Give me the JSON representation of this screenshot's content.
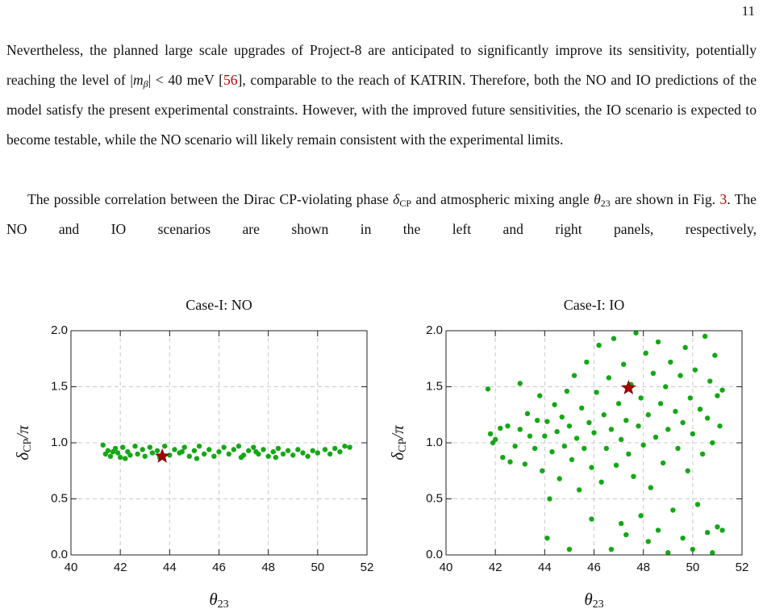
{
  "page_number": "11",
  "paragraphs": [
    [
      "Nevertheless, the planned large scale upgrades of Project-8 are anticipated to significantly improve its sensitivity, potentially reaching the level of |",
      "m",
      "β",
      "| < 40 meV [",
      "56",
      "], comparable to the reach of KATRIN. Therefore, both the NO and IO predictions of the model satisfy the present experimental constraints. However, with the improved future sensitivities, the IO scenario is expected to become testable, while the NO scenario will likely remain consistent with the experimental limits."
    ],
    [
      "The possible correlation between the Dirac CP-violating phase ",
      "δ",
      "CP",
      " and atmospheric mixing angle ",
      "θ",
      "23",
      " are shown in Fig. ",
      "3",
      ". The NO and IO scenarios are shown in the left and right panels, respectively,"
    ]
  ],
  "chart_data": [
    {
      "type": "scatter",
      "title": "Case-I: NO",
      "xlabel": [
        "θ",
        "23"
      ],
      "ylabel": [
        "δ",
        "CP",
        "/π"
      ],
      "xlim": [
        40,
        52
      ],
      "ylim": [
        0,
        2
      ],
      "xticks": [
        40,
        42,
        44,
        46,
        48,
        50,
        52
      ],
      "yticks": [
        {
          "value": 0,
          "label": "0.0"
        },
        0.5,
        {
          "value": 1,
          "label": "1.0"
        },
        1.5,
        {
          "value": 2,
          "label": "2.0"
        }
      ],
      "grid": true,
      "series": [
        {
          "color": "#14a814",
          "marker": "circle",
          "x": [
            41.3,
            41.4,
            41.5,
            41.6,
            41.8,
            41.9,
            42.0,
            42.1,
            42.3,
            42.4,
            42.6,
            42.7,
            42.9,
            43.0,
            43.2,
            43.3,
            43.5,
            43.8,
            44.0,
            44.2,
            44.4,
            44.6,
            44.8,
            45.0,
            45.2,
            45.4,
            45.6,
            45.8,
            46.0,
            46.2,
            46.4,
            46.6,
            46.8,
            47.0,
            47.2,
            47.4,
            47.6,
            47.8,
            48.0,
            48.2,
            48.4,
            48.6,
            48.8,
            49.0,
            49.2,
            49.4,
            49.6,
            49.8,
            50.0,
            50.3,
            50.5,
            50.7,
            50.9,
            51.1,
            51.3,
            42.2,
            43.6,
            45.1,
            46.9,
            48.3,
            41.7,
            44.5,
            47.5
          ],
          "y": [
            0.98,
            0.9,
            0.93,
            0.88,
            0.95,
            0.91,
            0.87,
            0.96,
            0.92,
            0.89,
            0.97,
            0.9,
            0.94,
            0.88,
            0.96,
            0.91,
            0.93,
            0.97,
            0.89,
            0.94,
            0.91,
            0.96,
            0.88,
            0.93,
            0.97,
            0.9,
            0.94,
            0.88,
            0.92,
            0.96,
            0.9,
            0.94,
            0.97,
            0.89,
            0.93,
            0.96,
            0.9,
            0.94,
            0.88,
            0.92,
            0.95,
            0.9,
            0.93,
            0.89,
            0.94,
            0.91,
            0.88,
            0.93,
            0.91,
            0.94,
            0.9,
            0.95,
            0.92,
            0.97,
            0.96,
            0.86,
            0.87,
            0.86,
            0.87,
            0.87,
            0.92,
            0.92,
            0.92
          ]
        },
        {
          "color": "#a80000",
          "marker": "star",
          "x": [
            43.7
          ],
          "y": [
            0.88
          ]
        }
      ]
    },
    {
      "type": "scatter",
      "title": "Case-I: IO",
      "xlabel": [
        "θ",
        "23"
      ],
      "ylabel": [
        "δ",
        "CP",
        "/π"
      ],
      "xlim": [
        40,
        52
      ],
      "ylim": [
        0,
        2
      ],
      "xticks": [
        40,
        42,
        44,
        46,
        48,
        50,
        52
      ],
      "yticks": [
        {
          "value": 0,
          "label": "0.0"
        },
        0.5,
        {
          "value": 1,
          "label": "1.0"
        },
        1.5,
        {
          "value": 2,
          "label": "2.0"
        }
      ],
      "grid": true,
      "series": [
        {
          "color": "#14a814",
          "marker": "circle",
          "x": [
            41.7,
            41.8,
            41.9,
            42.0,
            42.2,
            42.3,
            42.5,
            42.6,
            42.8,
            43.0,
            43.0,
            43.2,
            43.3,
            43.4,
            43.6,
            43.7,
            43.8,
            43.9,
            44.0,
            44.1,
            44.1,
            44.2,
            44.3,
            44.4,
            44.5,
            44.6,
            44.7,
            44.8,
            44.9,
            45.0,
            45.0,
            45.1,
            45.2,
            45.3,
            45.4,
            45.5,
            45.6,
            45.7,
            45.8,
            45.9,
            45.9,
            46.0,
            46.1,
            46.2,
            46.3,
            46.4,
            46.5,
            46.6,
            46.7,
            46.7,
            46.8,
            46.9,
            47.0,
            47.1,
            47.1,
            47.2,
            47.3,
            47.3,
            47.4,
            47.5,
            47.6,
            47.7,
            47.8,
            47.9,
            47.9,
            48.0,
            48.1,
            48.2,
            48.2,
            48.3,
            48.4,
            48.5,
            48.6,
            48.6,
            48.7,
            48.8,
            48.9,
            49.0,
            49.0,
            49.1,
            49.2,
            49.3,
            49.4,
            49.5,
            49.6,
            49.6,
            49.7,
            49.8,
            49.9,
            50.0,
            50.0,
            50.1,
            50.2,
            50.3,
            50.4,
            50.5,
            50.6,
            50.6,
            50.7,
            50.8,
            50.8,
            50.9,
            51.0,
            51.0,
            51.1,
            51.2,
            51.2
          ],
          "y": [
            1.48,
            1.08,
            1.0,
            1.03,
            1.13,
            0.87,
            1.15,
            0.83,
            0.97,
            1.12,
            1.53,
            0.81,
            1.26,
            1.06,
            0.95,
            1.2,
            1.42,
            0.75,
            1.06,
            0.15,
            1.19,
            0.5,
            0.92,
            1.34,
            1.1,
            0.68,
            1.23,
            0.97,
            1.46,
            0.05,
            1.15,
            0.85,
            1.6,
            1.04,
            0.58,
            1.31,
            0.95,
            1.72,
            1.18,
            0.32,
            0.78,
            1.09,
            1.45,
            1.87,
            0.65,
            1.25,
            0.95,
            1.58,
            0.05,
            1.12,
            1.93,
            0.8,
            1.35,
            0.28,
            1.03,
            1.7,
            0.18,
            1.2,
            0.9,
            1.52,
            0.7,
            1.98,
            1.15,
            0.35,
            1.4,
            0.98,
            1.8,
            0.12,
            1.25,
            0.6,
            1.62,
            1.05,
            0.22,
            1.9,
            1.35,
            0.82,
            1.5,
            0.02,
            1.12,
            1.72,
            0.4,
            1.28,
            0.95,
            1.6,
            0.15,
            1.18,
            1.85,
            0.75,
            1.4,
            0.05,
            1.08,
            1.65,
            0.45,
            1.3,
            0.9,
            1.95,
            0.2,
            1.22,
            1.55,
            0.02,
            1.0,
            1.78,
            0.25,
            1.42,
            1.15,
            0.22,
            1.47
          ]
        },
        {
          "color": "#a80000",
          "marker": "star",
          "x": [
            47.4
          ],
          "y": [
            1.49
          ]
        }
      ]
    }
  ]
}
